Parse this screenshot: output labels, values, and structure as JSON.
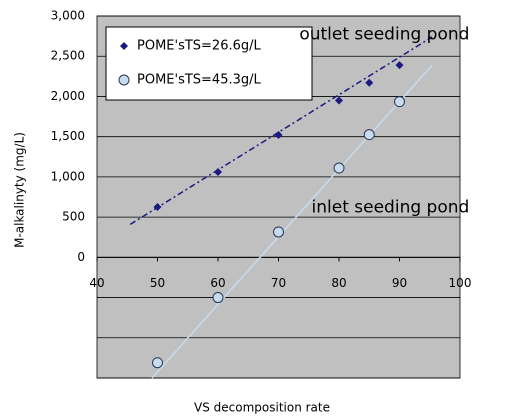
{
  "chart_data": {
    "type": "scatter",
    "x_label": "VS decomposition rate",
    "y_label": "M-alkalinyty (mg/L)",
    "xlim": [
      40,
      100
    ],
    "xticks": [
      40,
      50,
      60,
      70,
      80,
      90,
      100
    ],
    "ylim": [
      -1500,
      3000
    ],
    "yticks": [
      {
        "value": -1500,
        "label": null
      },
      {
        "value": -1000,
        "label": null
      },
      {
        "value": -500,
        "label": null
      },
      0,
      500,
      {
        "value": 1000,
        "label": "1,000"
      },
      {
        "value": 1500,
        "label": "1,500"
      },
      {
        "value": 2000,
        "label": "2,000"
      },
      {
        "value": 2500,
        "label": "2,500"
      },
      {
        "value": 3000,
        "label": "3,000"
      }
    ],
    "grid": true,
    "plot_background": "#c0c0c0",
    "series": [
      {
        "name": "POME'sTS=26.6g/L",
        "color": "#1a1a80",
        "marker": "diamond",
        "x": [
          50,
          60,
          70,
          80,
          85,
          90
        ],
        "values": [
          625,
          1060,
          1520,
          1950,
          2170,
          2390
        ],
        "trend": {
          "x": [
            45.5,
            95.4
          ],
          "y": [
            410,
            2740
          ]
        }
      },
      {
        "name": "POME'sTS=45.3g/L",
        "color": "#c8dcf0",
        "marker": "circle",
        "x": [
          50,
          60,
          70,
          80,
          85,
          90
        ],
        "values": [
          -1310,
          -500,
          315,
          1110,
          1525,
          1935
        ],
        "trend": {
          "x": [
            49.1,
            95.4
          ],
          "y": [
            -1500,
            2390
          ]
        }
      }
    ],
    "annotations": [
      {
        "text": "outlet seeding pond",
        "x": 87.5,
        "y": 2770
      },
      {
        "text": "inlet seeding pond",
        "x": 88.5,
        "y": 620
      }
    ]
  }
}
